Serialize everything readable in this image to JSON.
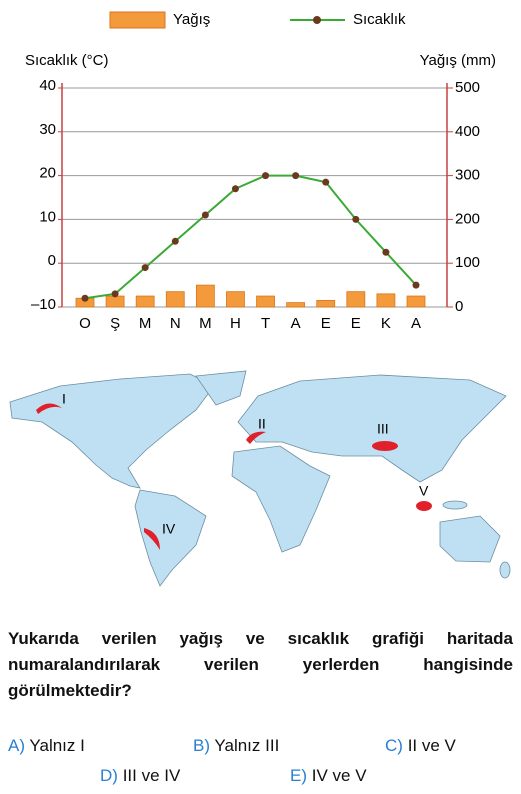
{
  "chart_data": {
    "type": "combo",
    "y_label": "Sıcaklık (°C)",
    "y2_label": "Yağış (mm)",
    "categories": [
      "O",
      "Ş",
      "M",
      "N",
      "M",
      "H",
      "T",
      "A",
      "E",
      "E",
      "K",
      "A"
    ],
    "ylim": [
      -10,
      40
    ],
    "yticks": [
      {
        "value": -10,
        "label": "–10"
      },
      0,
      10,
      20,
      30,
      40
    ],
    "y2lim": [
      0,
      500
    ],
    "y2ticks": [
      0,
      100,
      200,
      300,
      400,
      500
    ],
    "grid": true,
    "series": [
      {
        "name": "Yağış",
        "type": "bar",
        "axis": "y2",
        "color": "#f39a3c",
        "values": [
          20,
          25,
          25,
          35,
          50,
          35,
          25,
          10,
          15,
          35,
          30,
          25
        ]
      },
      {
        "name": "Sıcaklık",
        "type": "line",
        "axis": "y",
        "color": "#3aaa35",
        "marker_color": "#6b3a1e",
        "values": [
          -8,
          -7,
          -1,
          5,
          11,
          17,
          20,
          20,
          18.5,
          10,
          2.5,
          -5
        ]
      }
    ]
  },
  "map": {
    "labels": [
      "I",
      "II",
      "III",
      "IV",
      "V"
    ]
  },
  "question": "Yukarıda verilen yağış ve sıcaklık grafiği haritada numaralandırılarak verilen yerlerden hangisinde görülmektedir?",
  "options": [
    {
      "letter": "A)",
      "text": "Yalnız I"
    },
    {
      "letter": "B)",
      "text": "Yalnız III"
    },
    {
      "letter": "C)",
      "text": "II ve V"
    },
    {
      "letter": "D)",
      "text": "III ve IV"
    },
    {
      "letter": "E)",
      "text": "IV ve V"
    }
  ]
}
